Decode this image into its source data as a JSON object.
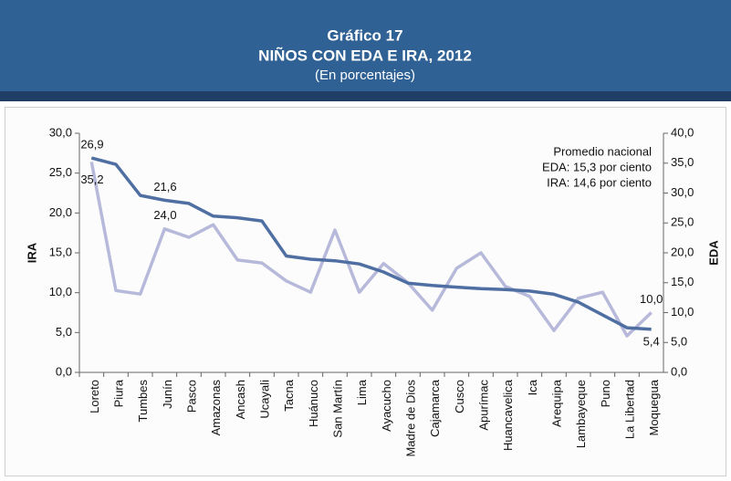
{
  "header": {
    "title": "Gráfico 17",
    "subtitle": "NIÑOS CON EDA E IRA, 2012",
    "note": "(En porcentajes)"
  },
  "chart_data": {
    "type": "line",
    "categories": [
      "Loreto",
      "Piura",
      "Tumbes",
      "Junín",
      "Pasco",
      "Amazonas",
      "Ancash",
      "Ucayali",
      "Tacna",
      "Huánuco",
      "San Martín",
      "Lima",
      "Ayacucho",
      "Madre de Dios",
      "Cajamarca",
      "Cusco",
      "Apurímac",
      "Huancavelica",
      "Ica",
      "Arequipa",
      "Lambayeque",
      "Puno",
      "La Libertad",
      "Moquegua"
    ],
    "series": [
      {
        "name": "IRA",
        "color": "#4f6fa3",
        "values": [
          26.9,
          26.1,
          22.2,
          21.6,
          21.2,
          19.6,
          19.4,
          19.0,
          14.6,
          14.2,
          14.0,
          13.6,
          12.6,
          11.2,
          10.9,
          10.7,
          10.5,
          10.4,
          10.2,
          9.8,
          8.8,
          7.2,
          5.6,
          5.4
        ],
        "value_labels": [
          "26,9",
          null,
          null,
          "21,6",
          null,
          null,
          null,
          null,
          null,
          null,
          null,
          null,
          null,
          null,
          null,
          null,
          null,
          null,
          null,
          null,
          null,
          null,
          null,
          "5,4"
        ]
      },
      {
        "name": "EDA",
        "color": "#b6b9d9",
        "axis": "y2",
        "values": [
          35.2,
          13.7,
          13.1,
          24.0,
          22.6,
          24.7,
          18.8,
          18.3,
          15.3,
          13.4,
          23.8,
          13.4,
          18.2,
          15.0,
          10.4,
          17.4,
          20.0,
          14.4,
          12.7,
          7.0,
          12.4,
          13.4,
          6.1,
          10.0
        ],
        "value_labels": [
          "35,2",
          null,
          null,
          "24,0",
          null,
          null,
          null,
          null,
          null,
          null,
          null,
          null,
          null,
          null,
          null,
          null,
          null,
          null,
          null,
          null,
          null,
          null,
          null,
          "10,0"
        ]
      }
    ],
    "ylabel": "IRA",
    "y2label": "EDA",
    "ylim": [
      0,
      30
    ],
    "yticks": [
      {
        "value": 0,
        "label": "0,0"
      },
      {
        "value": 5,
        "label": "5,0"
      },
      {
        "value": 10,
        "label": "10,0"
      },
      {
        "value": 15,
        "label": "15,0"
      },
      {
        "value": 20,
        "label": "20,0"
      },
      {
        "value": 25,
        "label": "25,0"
      },
      {
        "value": 30,
        "label": "30,0"
      }
    ],
    "y2lim": [
      0,
      40
    ],
    "y2ticks": [
      {
        "value": 0,
        "label": "0,0"
      },
      {
        "value": 5,
        "label": "5,0"
      },
      {
        "value": 10,
        "label": "10,0"
      },
      {
        "value": 15,
        "label": "15,0"
      },
      {
        "value": 20,
        "label": "20,0"
      },
      {
        "value": 25,
        "label": "25,0"
      },
      {
        "value": 30,
        "label": "30,0"
      },
      {
        "value": 35,
        "label": "35,0"
      },
      {
        "value": 40,
        "label": "40,0"
      }
    ],
    "annotations": [
      "Promedio nacional",
      "EDA: 15,3 por ciento",
      "IRA: 14,6 por ciento"
    ]
  }
}
